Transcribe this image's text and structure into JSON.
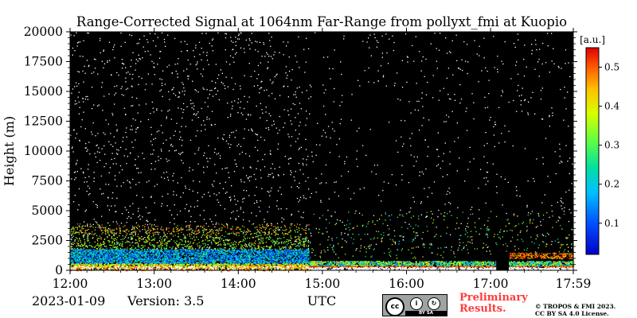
{
  "chart_data": {
    "type": "heatmap",
    "title": "Range-Corrected Signal at 1064nm Far-Range from pollyxt_fmi at Kuopio",
    "xlabel": "UTC",
    "ylabel": "Height (m)",
    "x_ticks": [
      "12:00",
      "13:00",
      "14:00",
      "15:00",
      "16:00",
      "17:00",
      "17:59"
    ],
    "y_ticks": [
      0,
      2500,
      5000,
      7500,
      10000,
      12500,
      15000,
      17500,
      20000
    ],
    "ylim": [
      0,
      20000
    ],
    "xlim": [
      "12:00",
      "17:59"
    ],
    "colorbar": {
      "label": "[a.u.]",
      "ticks": [
        0.1,
        0.2,
        0.3,
        0.4,
        0.5
      ],
      "range": [
        0.02,
        0.55
      ],
      "colormap": "jet"
    },
    "background_color": "#000000",
    "layers": [
      {
        "from": "12:00",
        "to": "14:50",
        "bottom_m": 0,
        "top_m": 1800,
        "level": "0.1-0.3"
      },
      {
        "from": "12:00",
        "to": "14:50",
        "bottom_m": 1800,
        "top_m": 3800,
        "level": "0.2-0.4 (sparse)"
      },
      {
        "from": "14:50",
        "to": "17:59",
        "bottom_m": 0,
        "top_m": 800,
        "level": "0.3-0.55"
      }
    ],
    "missing_data": [
      {
        "from": "17:04",
        "to": "17:13"
      }
    ]
  },
  "footer": {
    "date": "2023-01-09",
    "version": "Version: 3.5",
    "preliminary_line1": "Preliminary",
    "preliminary_line2": "Results.",
    "copyright_line1": "© TROPOS & FMI 2023.",
    "copyright_line2": "CC BY SA 4.0 License.",
    "cc_badge_text": "BY  SA"
  },
  "colors": {
    "plot_background": "#000000",
    "preliminary_text": "#ff3b3b",
    "cc_badge": "#9ea5a1"
  }
}
